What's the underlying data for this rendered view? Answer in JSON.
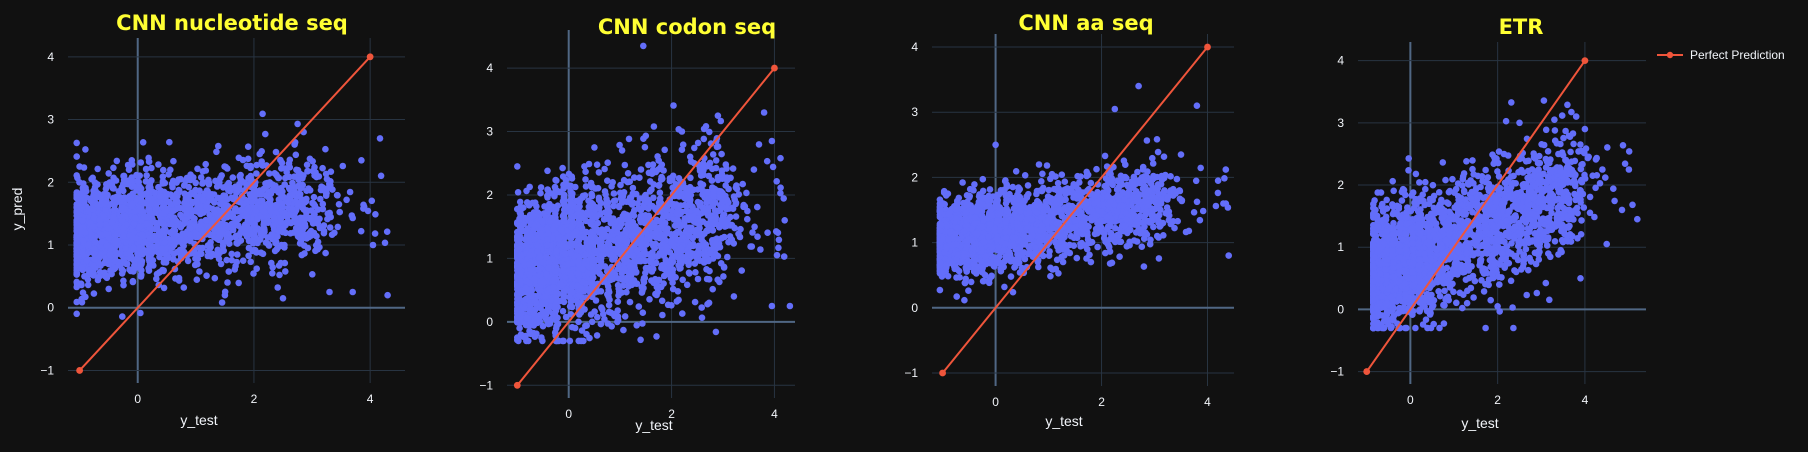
{
  "chart_data": [
    {
      "type": "scatter",
      "title": "CNN nucleotide seq",
      "xlabel": "y_test",
      "ylabel": "y_pred",
      "xlim": [
        -1.2,
        4.6
      ],
      "ylim": [
        -1.2,
        4.3
      ],
      "xticks": [
        0,
        2,
        4
      ],
      "yticks": [
        -1,
        0,
        1,
        2,
        3,
        4
      ],
      "grid": true,
      "series": [
        {
          "kind": "predictions",
          "color": "#636efa",
          "x_range": [
            -1.05,
            4.3
          ],
          "y_center": 1.45,
          "y_spread": 0.42,
          "slope": 0.08,
          "count": 2200,
          "outliers": [
            [
              -1.0,
              2.25
            ],
            [
              -0.15,
              2.2
            ],
            [
              2.1,
              2.45
            ],
            [
              2.7,
              2.6
            ],
            [
              3.85,
              2.35
            ],
            [
              4.05,
              1.0
            ],
            [
              4.3,
              0.2
            ],
            [
              3.3,
              0.25
            ],
            [
              3.7,
              0.25
            ],
            [
              1.5,
              0.2
            ],
            [
              -0.5,
              0.3
            ],
            [
              2.5,
              0.15
            ]
          ]
        },
        {
          "kind": "line",
          "name": "Perfect Prediction",
          "color": "#ef553b",
          "x": [
            -1,
            4
          ],
          "y": [
            -1,
            4
          ]
        }
      ]
    },
    {
      "type": "scatter",
      "title": "CNN codon seq",
      "xlabel": "y_test",
      "ylabel": "y_pred",
      "xlim": [
        -1.2,
        4.4
      ],
      "ylim": [
        -1.2,
        4.6
      ],
      "xticks": [
        0,
        2,
        4
      ],
      "yticks": [
        -1,
        0,
        1,
        2,
        3,
        4
      ],
      "grid": true,
      "series": [
        {
          "kind": "predictions",
          "color": "#636efa",
          "x_range": [
            -1.0,
            4.3
          ],
          "y_center": 1.35,
          "y_spread": 0.55,
          "slope": 0.22,
          "count": 2400,
          "outliers": [
            [
              1.45,
              4.35
            ],
            [
              -1.0,
              2.45
            ],
            [
              2.9,
              3.25
            ],
            [
              3.8,
              3.3
            ],
            [
              3.95,
              2.85
            ],
            [
              4.2,
              1.6
            ],
            [
              4.3,
              0.25
            ],
            [
              3.95,
              0.25
            ],
            [
              0.5,
              2.75
            ],
            [
              2.2,
              3.0
            ],
            [
              3.6,
              2.4
            ],
            [
              4.05,
              1.05
            ]
          ]
        },
        {
          "kind": "line",
          "name": "Perfect Prediction",
          "color": "#ef553b",
          "x": [
            -1,
            4
          ],
          "y": [
            -1,
            4
          ]
        }
      ]
    },
    {
      "type": "scatter",
      "title": "CNN aa seq",
      "xlabel": "y_test",
      "ylabel": "y_pred",
      "xlim": [
        -1.2,
        4.5
      ],
      "ylim": [
        -1.2,
        4.2
      ],
      "xticks": [
        0,
        2,
        4
      ],
      "yticks": [
        -1,
        0,
        1,
        2,
        3,
        4
      ],
      "grid": true,
      "series": [
        {
          "kind": "predictions",
          "color": "#636efa",
          "x_range": [
            -1.05,
            4.4
          ],
          "y_center": 1.4,
          "y_spread": 0.3,
          "slope": 0.14,
          "count": 2100,
          "outliers": [
            [
              0.0,
              2.5
            ],
            [
              2.25,
              3.05
            ],
            [
              2.7,
              3.4
            ],
            [
              3.8,
              3.1
            ],
            [
              4.2,
              1.95
            ],
            [
              4.3,
              1.6
            ],
            [
              4.4,
              0.8
            ],
            [
              1.8,
              0.7
            ],
            [
              3.5,
              2.35
            ],
            [
              -0.9,
              1.75
            ]
          ]
        },
        {
          "kind": "line",
          "name": "Perfect Prediction",
          "color": "#ef553b",
          "x": [
            -1,
            4
          ],
          "y": [
            -1,
            4
          ]
        }
      ]
    },
    {
      "type": "scatter",
      "title": "ETR",
      "xlabel": "y_test",
      "ylabel": "y_pred",
      "xlim": [
        -1.2,
        5.4
      ],
      "ylim": [
        -1.2,
        4.3
      ],
      "xticks": [
        0,
        2,
        4
      ],
      "yticks": [
        -1,
        0,
        1,
        2,
        3,
        4
      ],
      "grid": true,
      "series": [
        {
          "kind": "predictions",
          "color": "#636efa",
          "x_range": [
            -0.85,
            5.2
          ],
          "y_center": 1.25,
          "y_spread": 0.48,
          "slope": 0.3,
          "count": 2400,
          "outliers": [
            [
              2.5,
              3.0
            ],
            [
              3.3,
              3.05
            ],
            [
              3.8,
              3.1
            ],
            [
              4.0,
              2.9
            ],
            [
              4.4,
              2.25
            ],
            [
              4.85,
              1.6
            ],
            [
              5.2,
              1.45
            ],
            [
              3.9,
              0.5
            ],
            [
              2.0,
              0.05
            ],
            [
              1.3,
              0.1
            ],
            [
              4.5,
              1.05
            ],
            [
              -0.8,
              1.6
            ]
          ]
        },
        {
          "kind": "line",
          "name": "Perfect Prediction",
          "color": "#ef553b",
          "x": [
            -1,
            4
          ],
          "y": [
            -1,
            4
          ]
        }
      ]
    }
  ],
  "legend": {
    "label": "Perfect Prediction",
    "color": "#ef553b"
  }
}
